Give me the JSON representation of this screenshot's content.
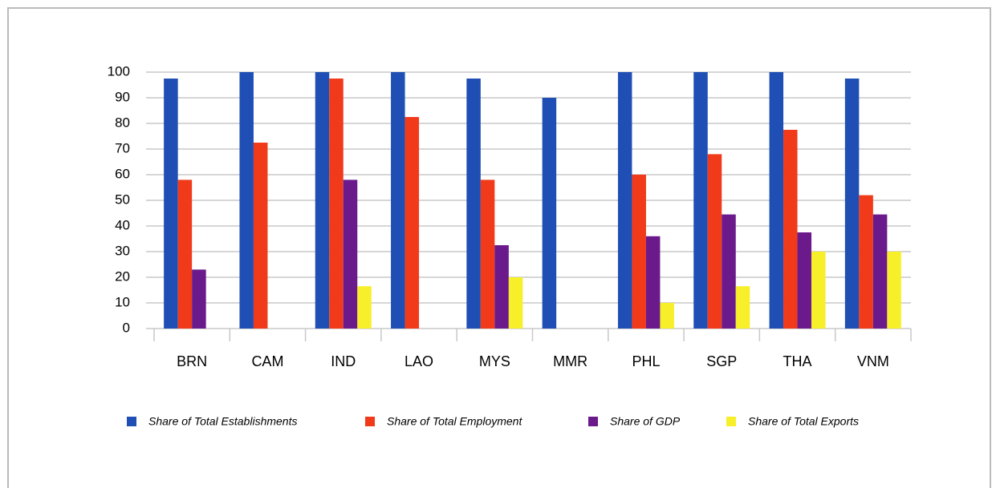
{
  "chart_data": {
    "type": "bar",
    "categories": [
      "BRN",
      "CAM",
      "IND",
      "LAO",
      "MYS",
      "MMR",
      "PHL",
      "SGP",
      "THA",
      "VNM"
    ],
    "series": [
      {
        "name": "Share of Total Establishments",
        "color": "#1f4fb4",
        "values": [
          97.5,
          100,
          100,
          100,
          97.5,
          90,
          100,
          100,
          100,
          97.5
        ]
      },
      {
        "name": "Share of Total Employment",
        "color": "#f03a1a",
        "values": [
          58,
          72.5,
          97.5,
          82.5,
          58,
          null,
          60,
          68,
          77.5,
          52
        ]
      },
      {
        "name": "Share of GDP",
        "color": "#6a1a8a",
        "values": [
          23,
          null,
          58,
          null,
          32.5,
          null,
          36,
          44.5,
          37.5,
          44.5
        ]
      },
      {
        "name": "Share of Total Exports",
        "color": "#f7ef2a",
        "values": [
          null,
          null,
          16.5,
          null,
          20,
          null,
          10,
          16.5,
          30,
          30
        ]
      }
    ],
    "ylim": [
      0,
      100
    ],
    "yticks": [
      0,
      10,
      20,
      30,
      40,
      50,
      60,
      70,
      80,
      90,
      100
    ],
    "grid": true,
    "legend": "bottom"
  }
}
